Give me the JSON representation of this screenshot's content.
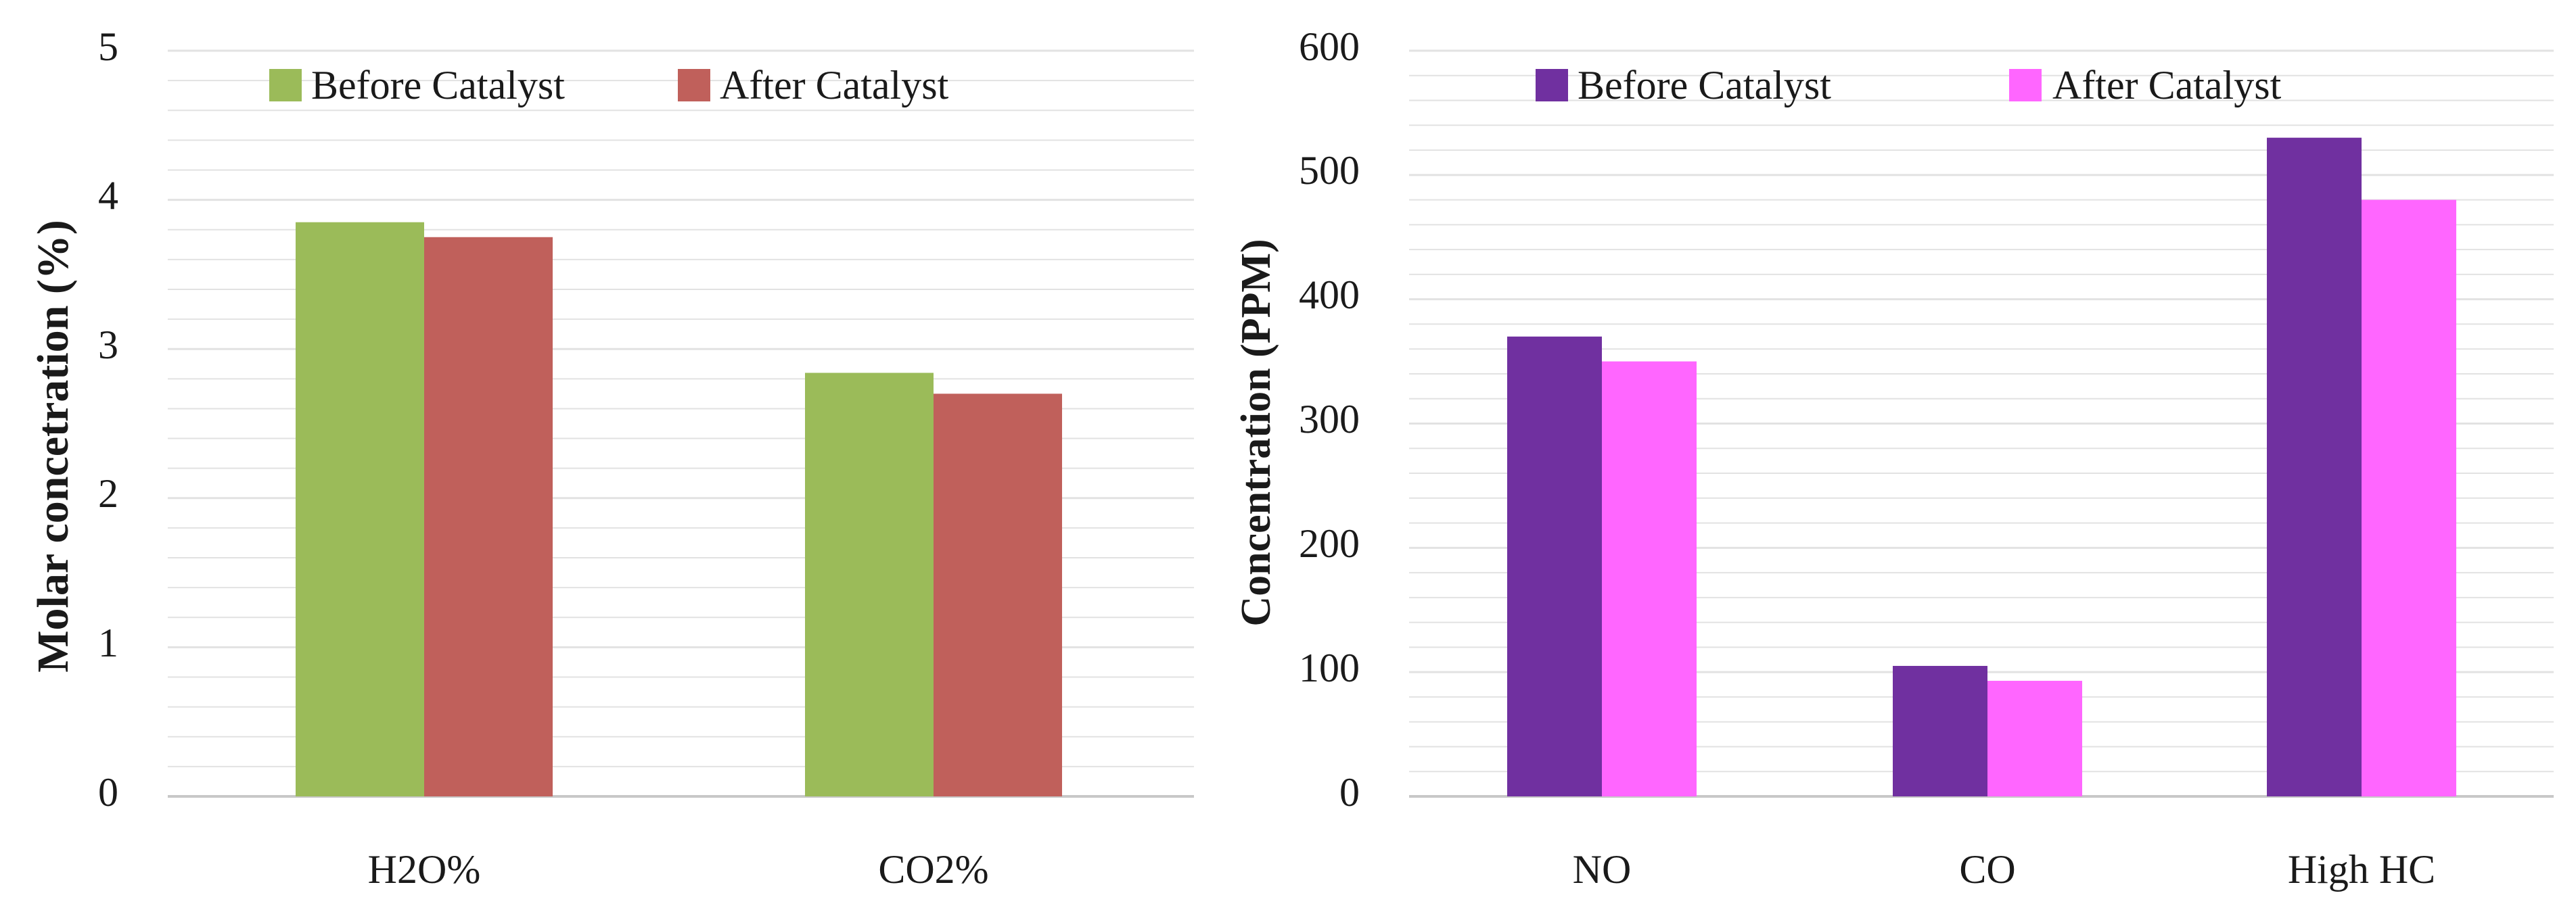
{
  "colors": {
    "left_before": "#9BBB59",
    "left_after": "#C0605B",
    "right_before": "#7030A0",
    "right_after": "#FF66FF",
    "gridline": "#e2e2e2",
    "axis": "#c8c8c8"
  },
  "chart_data": [
    {
      "type": "bar",
      "title": "",
      "xlabel": "",
      "ylabel": "Molar concetration (%)",
      "ylim": [
        0,
        5
      ],
      "yticks": [
        "0",
        "1",
        "2",
        "3",
        "4",
        "5"
      ],
      "legend_position": "top-center",
      "categories": [
        "H2O%",
        "CO2%"
      ],
      "series": [
        {
          "name": "Before Catalyst",
          "values": [
            3.85,
            2.84
          ]
        },
        {
          "name": "After Catalyst",
          "values": [
            3.75,
            2.7
          ]
        }
      ]
    },
    {
      "type": "bar",
      "title": "",
      "xlabel": "",
      "ylabel": "Concentration (PPM)",
      "ylim": [
        0,
        600
      ],
      "yticks": [
        "0",
        "100",
        "200",
        "300",
        "400",
        "500",
        "600"
      ],
      "legend_position": "top-center",
      "categories": [
        "NO",
        "CO",
        "High HC"
      ],
      "series": [
        {
          "name": "Before Catalyst",
          "values": [
            370,
            105,
            530
          ]
        },
        {
          "name": "After Catalyst",
          "values": [
            350,
            93,
            480
          ]
        }
      ]
    }
  ]
}
